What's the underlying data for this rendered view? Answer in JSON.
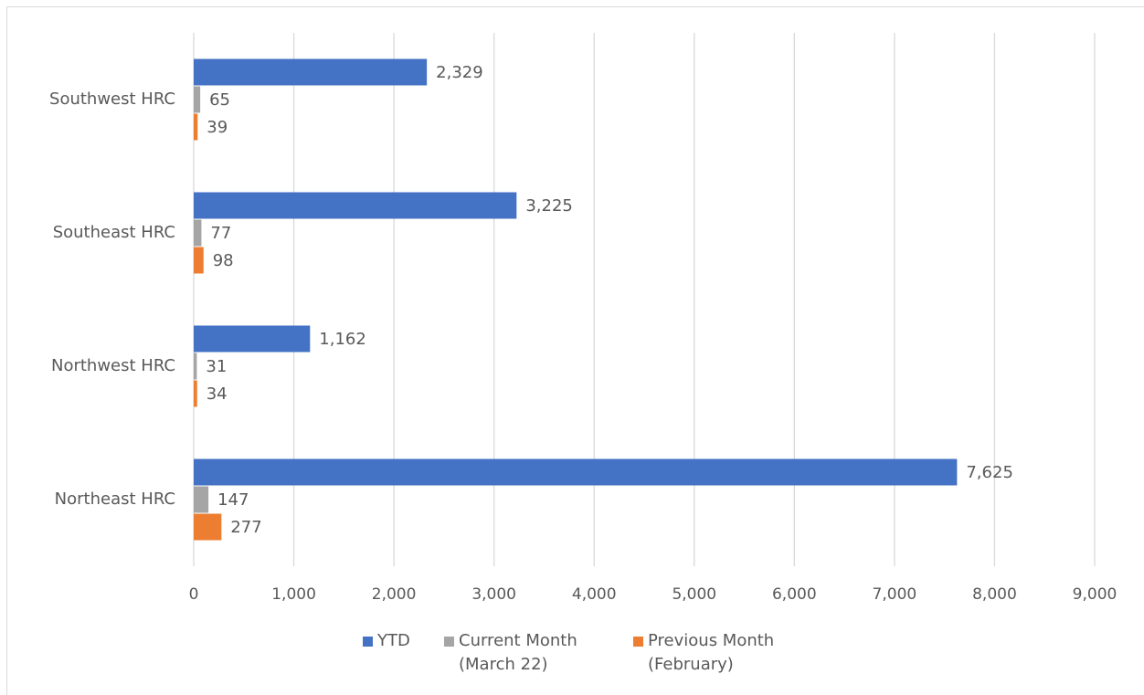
{
  "chart_data": {
    "type": "bar",
    "orientation": "horizontal",
    "categories": [
      "Southwest HRC",
      "Southeast HRC",
      "Northwest HRC",
      "Northeast HRC"
    ],
    "series": [
      {
        "name": "YTD",
        "color": "#4472c4",
        "values": [
          2329,
          3225,
          1162,
          7625
        ],
        "value_labels": [
          "2,329",
          "3,225",
          "1,162",
          "7,625"
        ]
      },
      {
        "name": "Current Month (March 22)",
        "color": "#a5a5a5",
        "values": [
          65,
          77,
          31,
          147
        ],
        "value_labels": [
          "65",
          "77",
          "31",
          "147"
        ]
      },
      {
        "name": "Previous Month (February)",
        "color": "#ed7d31",
        "values": [
          39,
          98,
          34,
          277
        ],
        "value_labels": [
          "39",
          "98",
          "34",
          "277"
        ]
      }
    ],
    "xlim": [
      0,
      9000
    ],
    "xticks": [
      0,
      {
        "value": 1000,
        "label": "1,000"
      },
      {
        "value": 2000,
        "label": "2,000"
      },
      {
        "value": 3000,
        "label": "3,000"
      },
      {
        "value": 4000,
        "label": "4,000"
      },
      {
        "value": 5000,
        "label": "5,000"
      },
      {
        "value": 6000,
        "label": "6,000"
      },
      {
        "value": 7000,
        "label": "7,000"
      },
      {
        "value": 8000,
        "label": "8,000"
      },
      {
        "value": 9000,
        "label": "9,000"
      }
    ],
    "grid": true,
    "legend": "bottom"
  }
}
